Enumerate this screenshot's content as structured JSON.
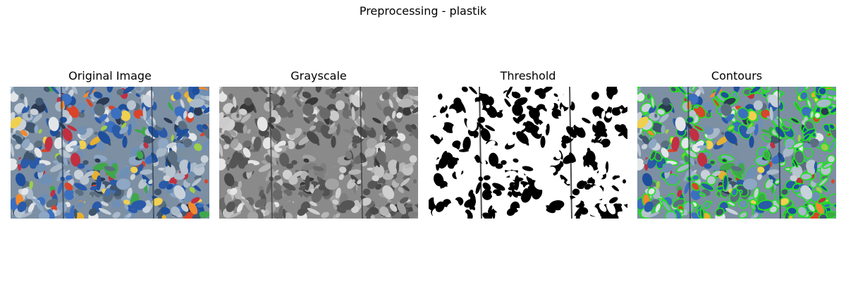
{
  "figure": {
    "title": "Preprocessing - plastik"
  },
  "panels": [
    {
      "title": "Original Image"
    },
    {
      "title": "Grayscale"
    },
    {
      "title": "Threshold"
    },
    {
      "title": "Contours"
    }
  ],
  "colors": {
    "contour": "#22e022",
    "threshold_fg": "#ffffff",
    "threshold_bg": "#000000"
  }
}
